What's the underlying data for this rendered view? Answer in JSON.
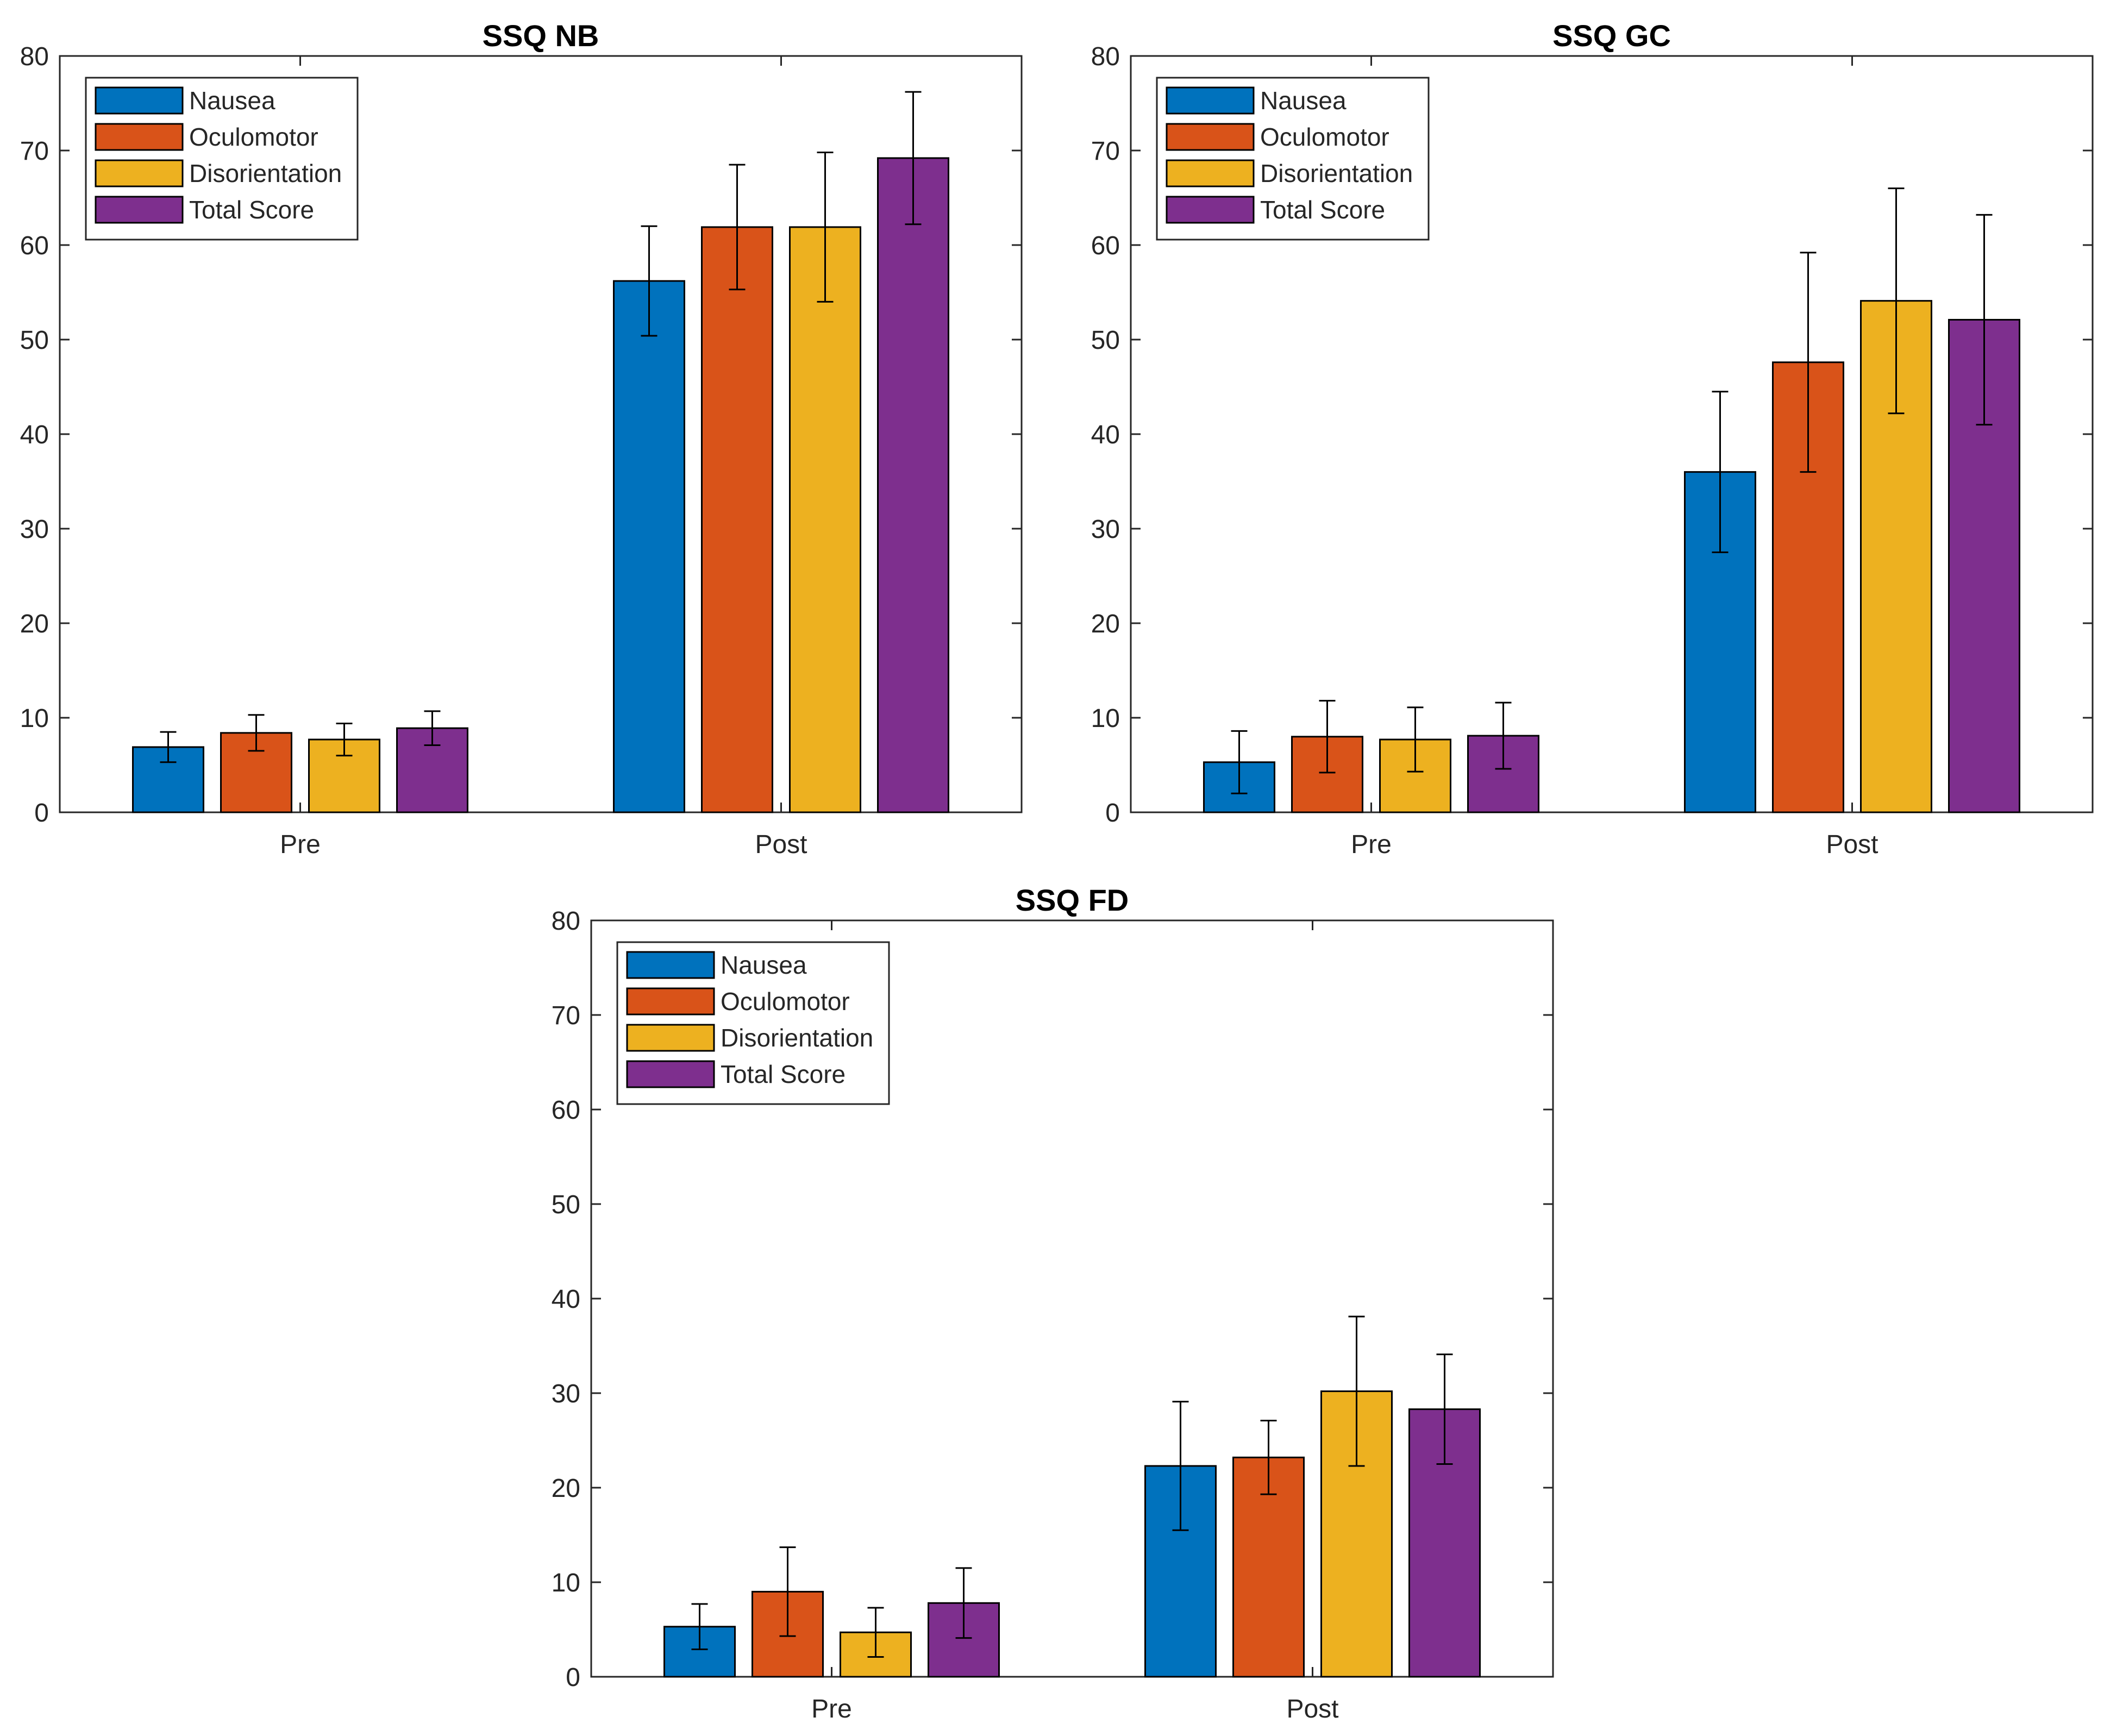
{
  "colors": {
    "series": [
      "#0072bd",
      "#d95319",
      "#edb120",
      "#7e2f8e"
    ],
    "axis": "#262626",
    "errorbar": "#000000"
  },
  "chart_data": [
    {
      "type": "bar",
      "title": "SSQ NB",
      "xlabel": "",
      "ylabel": "",
      "categories": [
        "Pre",
        "Post"
      ],
      "ylim": [
        0,
        80
      ],
      "yticks": [
        0,
        10,
        20,
        30,
        40,
        50,
        60,
        70,
        80
      ],
      "legend_position": "top-left",
      "series": [
        {
          "name": "Nausea",
          "values": [
            6.9,
            56.2
          ],
          "error": [
            1.6,
            5.8
          ]
        },
        {
          "name": "Oculomotor",
          "values": [
            8.4,
            61.9
          ],
          "error": [
            1.9,
            6.6
          ]
        },
        {
          "name": "Disorientation",
          "values": [
            7.7,
            61.9
          ],
          "error": [
            1.7,
            7.9
          ]
        },
        {
          "name": "Total Score",
          "values": [
            8.9,
            69.2
          ],
          "error": [
            1.8,
            7.0
          ]
        }
      ]
    },
    {
      "type": "bar",
      "title": "SSQ GC",
      "xlabel": "",
      "ylabel": "",
      "categories": [
        "Pre",
        "Post"
      ],
      "ylim": [
        0,
        80
      ],
      "yticks": [
        0,
        10,
        20,
        30,
        40,
        50,
        60,
        70,
        80
      ],
      "legend_position": "top-left",
      "series": [
        {
          "name": "Nausea",
          "values": [
            5.3,
            36.0
          ],
          "error": [
            3.3,
            8.5
          ]
        },
        {
          "name": "Oculomotor",
          "values": [
            8.0,
            47.6
          ],
          "error": [
            3.8,
            11.6
          ]
        },
        {
          "name": "Disorientation",
          "values": [
            7.7,
            54.1
          ],
          "error": [
            3.4,
            11.9
          ]
        },
        {
          "name": "Total Score",
          "values": [
            8.1,
            52.1
          ],
          "error": [
            3.5,
            11.1
          ]
        }
      ]
    },
    {
      "type": "bar",
      "title": "SSQ FD",
      "xlabel": "",
      "ylabel": "",
      "categories": [
        "Pre",
        "Post"
      ],
      "ylim": [
        0,
        80
      ],
      "yticks": [
        0,
        10,
        20,
        30,
        40,
        50,
        60,
        70,
        80
      ],
      "legend_position": "top-left",
      "series": [
        {
          "name": "Nausea",
          "values": [
            5.3,
            22.3
          ],
          "error": [
            2.4,
            6.8
          ]
        },
        {
          "name": "Oculomotor",
          "values": [
            9.0,
            23.2
          ],
          "error": [
            4.7,
            3.9
          ]
        },
        {
          "name": "Disorientation",
          "values": [
            4.7,
            30.2
          ],
          "error": [
            2.6,
            7.9
          ]
        },
        {
          "name": "Total Score",
          "values": [
            7.8,
            28.3
          ],
          "error": [
            3.7,
            5.8
          ]
        }
      ]
    }
  ]
}
